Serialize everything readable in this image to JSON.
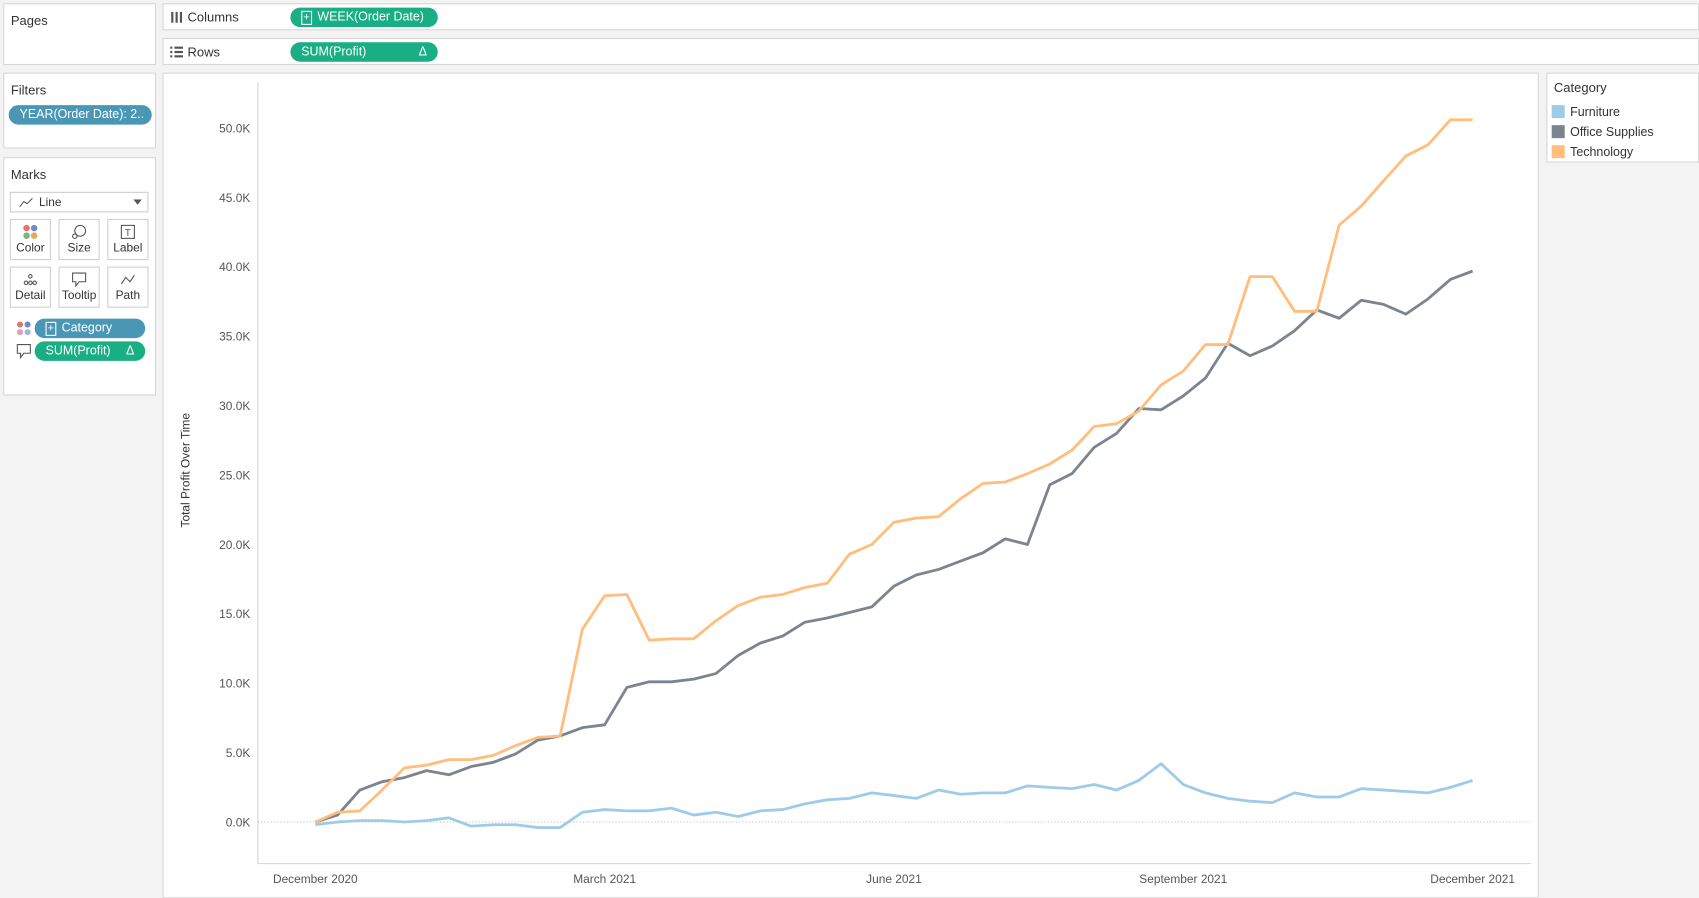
{
  "shelves": {
    "pages": "Pages",
    "columns": "Columns",
    "rows": "Rows",
    "columns_pill": "WEEK(Order Date)",
    "rows_pill": "SUM(Profit)",
    "rows_pill_flag": "Δ"
  },
  "filters": {
    "title": "Filters",
    "pill": "YEAR(Order Date): 2.."
  },
  "marks": {
    "title": "Marks",
    "mark_type": "Line",
    "buttons": [
      "Color",
      "Size",
      "Label",
      "Detail",
      "Tooltip",
      "Path"
    ],
    "pills": [
      "Category",
      "SUM(Profit)"
    ],
    "pill_flag": "Δ"
  },
  "chart_data": {
    "type": "line",
    "y_label": "Total Profit Over Time",
    "legend_title": "Category",
    "categories": [
      "December 2020",
      null,
      null,
      null,
      null,
      null,
      null,
      null,
      null,
      null,
      null,
      null,
      null,
      "March 2021",
      null,
      null,
      null,
      null,
      null,
      null,
      null,
      null,
      null,
      null,
      null,
      null,
      "June 2021",
      null,
      null,
      null,
      null,
      null,
      null,
      null,
      null,
      null,
      null,
      null,
      null,
      "September 2021",
      null,
      null,
      null,
      null,
      null,
      null,
      null,
      null,
      null,
      null,
      null,
      null,
      "December 2021"
    ],
    "series": [
      {
        "name": "Furniture",
        "color": "#a0cbe8",
        "values": [
          -200,
          0,
          100,
          100,
          0,
          100,
          300,
          -300,
          -200,
          -200,
          -400,
          -400,
          700,
          900,
          800,
          800,
          1000,
          500,
          700,
          400,
          800,
          900,
          1300,
          1600,
          1700,
          2100,
          1900,
          1700,
          2300,
          2000,
          2100,
          2100,
          2600,
          2500,
          2400,
          2700,
          2300,
          3000,
          4200,
          2700,
          2100,
          1700,
          1500,
          1400,
          2100,
          1800,
          1800,
          2400,
          2300,
          2200,
          2100,
          2500,
          3000
        ]
      },
      {
        "name": "Office Supplies",
        "color": "#7b848f",
        "values": [
          0,
          500,
          2300,
          2900,
          3200,
          3700,
          3400,
          4000,
          4300,
          4900,
          5900,
          6200,
          6800,
          7000,
          9700,
          10100,
          10100,
          10300,
          10700,
          12000,
          12900,
          13400,
          14400,
          14700,
          15100,
          15500,
          17000,
          17800,
          18200,
          18800,
          19400,
          20400,
          20000,
          24300,
          25100,
          27000,
          28000,
          29800,
          29700,
          30700,
          32000,
          34500,
          33600,
          34300,
          35400,
          36900,
          36300,
          37600,
          37300,
          36600,
          37700,
          39100,
          39700
        ]
      },
      {
        "name": "Technology",
        "color": "#ffbe7d",
        "values": [
          0,
          700,
          800,
          2300,
          3900,
          4100,
          4500,
          4500,
          4800,
          5500,
          6100,
          6200,
          13900,
          16300,
          16400,
          13100,
          13200,
          13200,
          14500,
          15600,
          16200,
          16400,
          16900,
          17200,
          19300,
          20000,
          21600,
          21900,
          22000,
          23300,
          24400,
          24500,
          25100,
          25800,
          26800,
          28500,
          28700,
          29600,
          31500,
          32500,
          34400,
          34400,
          39300,
          39300,
          36800,
          36800,
          43000,
          44400,
          46200,
          48000,
          48800,
          50600,
          50600
        ]
      }
    ],
    "ylim": [
      -3000,
      53300
    ],
    "yticks": [
      {
        "value": 0,
        "label": "0.0K"
      },
      {
        "value": 5000,
        "label": "5.0K"
      },
      {
        "value": 10000,
        "label": "10.0K"
      },
      {
        "value": 15000,
        "label": "15.0K"
      },
      {
        "value": 20000,
        "label": "20.0K"
      },
      {
        "value": 25000,
        "label": "25.0K"
      },
      {
        "value": 30000,
        "label": "30.0K"
      },
      {
        "value": 35000,
        "label": "35.0K"
      },
      {
        "value": 40000,
        "label": "40.0K"
      },
      {
        "value": 45000,
        "label": "45.0K"
      },
      {
        "value": 50000,
        "label": "50.0K"
      }
    ],
    "grid": false,
    "zero_line": true
  }
}
